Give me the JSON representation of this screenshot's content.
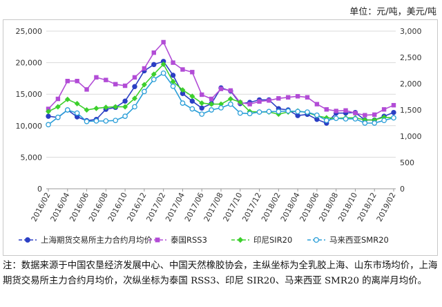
{
  "unit_note": "单位：元/吨，美元/吨",
  "footnote": "注：数据来源于中国农垦经济发展中心、中国天然橡胶协会，主纵坐标为全乳胶上海、山东市场均价，上海期货交易所主力合约月均价，次纵坐标为泰国 RSS3、印尼 SIR20、马来西亚 SMR20 的离岸月均价。",
  "colors": {
    "shfe": "#2b3fc4",
    "rss3": "#b24cd6",
    "sir20": "#3ccf2c",
    "smr20": "#2a9ed8",
    "grid": "#d9d9d9"
  },
  "chart_data": {
    "type": "line",
    "x": [
      "2016/02",
      "2016/03",
      "2016/04",
      "2016/05",
      "2016/06",
      "2016/07",
      "2016/08",
      "2016/09",
      "2016/10",
      "2016/11",
      "2016/12",
      "2017/01",
      "2017/02",
      "2017/03",
      "2017/04",
      "2017/05",
      "2017/06",
      "2017/07",
      "2017/08",
      "2017/09",
      "2017/10",
      "2017/11",
      "2017/12",
      "2018/01",
      "2018/02",
      "2018/03",
      "2018/04",
      "2018/05",
      "2018/06",
      "2018/07",
      "2018/08",
      "2018/09",
      "2018/10",
      "2018/11",
      "2018/12",
      "2019/01",
      "2019/02"
    ],
    "x_tick_labels": [
      "2016/02",
      "2016/04",
      "2016/06",
      "2016/08",
      "2016/10",
      "2016/12",
      "2017/02",
      "2017/04",
      "2017/06",
      "2017/08",
      "2017/10",
      "2017/12",
      "2018/02",
      "2018/04",
      "2018/06",
      "2018/08",
      "2018/10",
      "2018/12",
      "2019/02"
    ],
    "ylim_left": [
      0,
      25000
    ],
    "yticks_left": [
      "0",
      "5,000",
      "10,000",
      "15,000",
      "20,000",
      "25,000"
    ],
    "ylim_right": [
      0,
      3000
    ],
    "yticks_right": [
      "0",
      "500",
      "1,000",
      "1,500",
      "2,000",
      "2,500",
      "3,000"
    ],
    "grid": true,
    "legend_position": "bottom",
    "series": [
      {
        "name": "上海期货交易所主力合约月均价",
        "axis": "left",
        "marker": "circle-filled",
        "values": [
          11500,
          11300,
          12500,
          11400,
          10800,
          11000,
          12600,
          12900,
          13900,
          16200,
          18700,
          19700,
          20200,
          18000,
          15100,
          13900,
          12800,
          13500,
          16000,
          15500,
          13500,
          13700,
          14100,
          14100,
          12700,
          12500,
          11600,
          11800,
          11000,
          10400,
          12000,
          12000,
          12100,
          10900,
          10900,
          11500,
          12100
        ]
      },
      {
        "name": "泰国RSS3",
        "axis": "right",
        "marker": "square-filled",
        "values": [
          1520,
          1710,
          2050,
          2050,
          1890,
          2120,
          2070,
          1990,
          1960,
          2120,
          2290,
          2590,
          2790,
          2400,
          2270,
          2220,
          1790,
          1710,
          1900,
          1870,
          1640,
          1610,
          1660,
          1680,
          1720,
          1740,
          1760,
          1740,
          1610,
          1510,
          1480,
          1490,
          1440,
          1400,
          1410,
          1510,
          1590
        ]
      },
      {
        "name": "印尼SIR20",
        "axis": "right",
        "marker": "diamond-filled",
        "values": [
          1470,
          1560,
          1700,
          1620,
          1500,
          1530,
          1550,
          1560,
          1560,
          1720,
          1980,
          2180,
          2370,
          2040,
          1880,
          1760,
          1630,
          1610,
          1610,
          1710,
          1650,
          1470,
          1460,
          1460,
          1420,
          1460,
          1480,
          1450,
          1390,
          1350,
          1340,
          1350,
          1350,
          1310,
          1310,
          1360,
          1350
        ]
      },
      {
        "name": "马来西亚SMR20",
        "axis": "right",
        "marker": "circle-open",
        "values": [
          1220,
          1360,
          1500,
          1440,
          1280,
          1290,
          1290,
          1300,
          1380,
          1560,
          1850,
          2080,
          2200,
          1950,
          1630,
          1520,
          1420,
          1500,
          1540,
          1610,
          1440,
          1430,
          1460,
          1470,
          1470,
          1480,
          1470,
          1460,
          1400,
          1300,
          1340,
          1330,
          1330,
          1250,
          1250,
          1300,
          1350
        ]
      }
    ]
  }
}
